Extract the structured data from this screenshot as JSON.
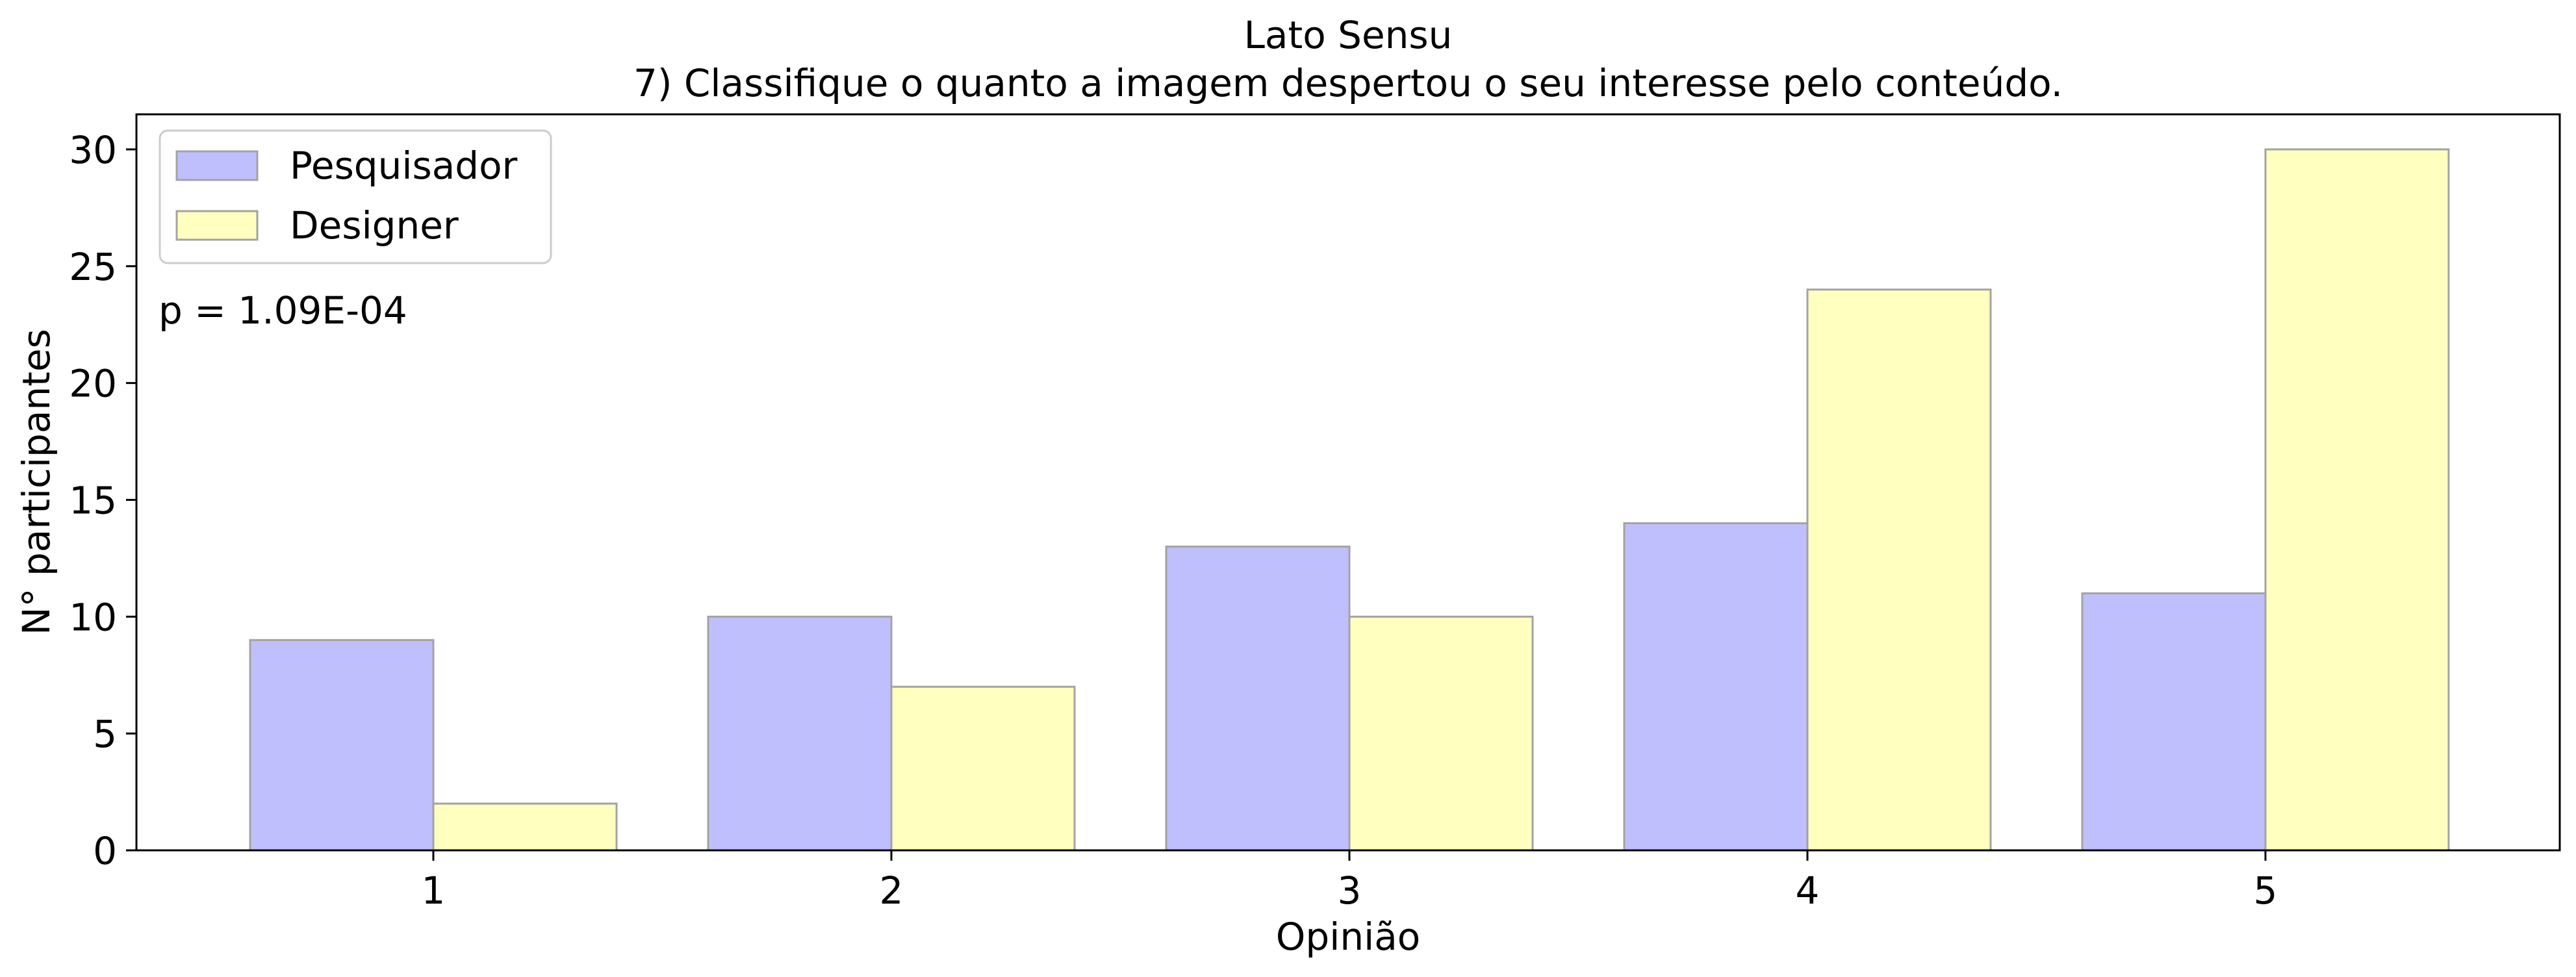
{
  "chart_data": {
    "type": "bar",
    "title_line1": "Lato Sensu",
    "title_line2": "7) Classifique o quanto a imagem despertou o seu interesse pelo conteúdo.",
    "xlabel": "Opinião",
    "ylabel": "N° participantes",
    "categories": [
      "1",
      "2",
      "3",
      "4",
      "5"
    ],
    "series": [
      {
        "name": "Pesquisador",
        "values": [
          9,
          10,
          13,
          14,
          11
        ],
        "color": "#bfbffd"
      },
      {
        "name": "Designer",
        "values": [
          2,
          7,
          10,
          24,
          30
        ],
        "color": "#ffffc0"
      }
    ],
    "ylim": [
      0,
      31.5
    ],
    "yticks": [
      0,
      5,
      10,
      15,
      20,
      25,
      30
    ],
    "annotation": "p = 1.09E-04",
    "legend_position": "top-left",
    "grid": false,
    "edge_color": "#a3a3a3"
  }
}
